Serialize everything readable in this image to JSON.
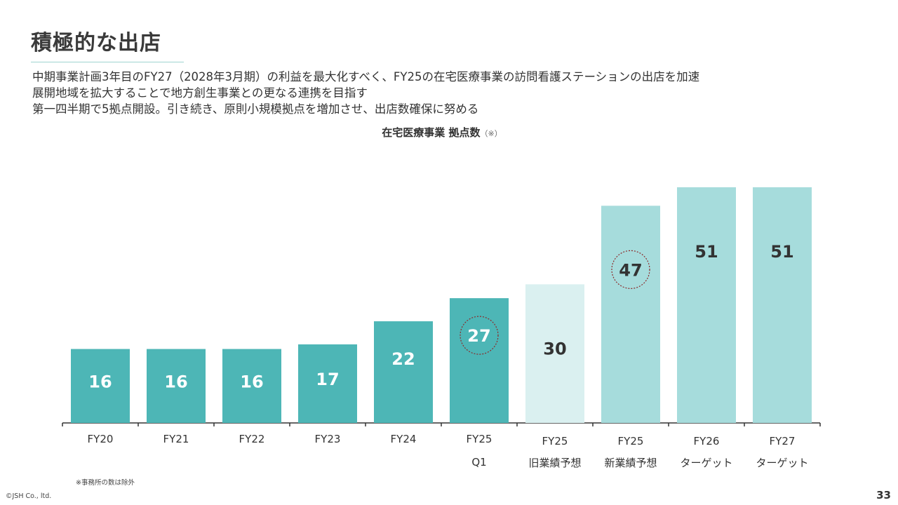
{
  "slide": {
    "title": "積極的な出店",
    "description": [
      "中期事業計画3年目のFY27（2028年3月期）の利益を最大化すべく、FY25の在宅医療事業の訪問看護ステーションの出店を加速",
      "展開地域を拡大することで地方創生事業との更なる連携を目指す",
      "第一四半期で5拠点開設。引き続き、原則小規模拠点を増加させ、出店数確保に努める"
    ],
    "footnote": "※事務所の数は除外",
    "copyright": "©JSH Co., ltd.",
    "page_number": "33"
  },
  "chart_data": {
    "type": "bar",
    "title": "在宅医療事業 拠点数",
    "title_note": "（※）",
    "categories": [
      [
        "FY20"
      ],
      [
        "FY21"
      ],
      [
        "FY22"
      ],
      [
        "FY23"
      ],
      [
        "FY24"
      ],
      [
        "FY25",
        "Q1"
      ],
      [
        "FY25",
        "旧業績予想"
      ],
      [
        "FY25",
        "新業績予想"
      ],
      [
        "FY26",
        "ターゲット"
      ],
      [
        "FY27",
        "ターゲット"
      ]
    ],
    "values": [
      16,
      16,
      16,
      17,
      22,
      27,
      30,
      47,
      51,
      51
    ],
    "bar_colors": [
      "#4db6b6",
      "#4db6b6",
      "#4db6b6",
      "#4db6b6",
      "#4db6b6",
      "#4db6b6",
      "#daf0f0",
      "#a6dcdc",
      "#a6dcdc",
      "#a6dcdc"
    ],
    "label_colors": [
      "#ffffff",
      "#ffffff",
      "#ffffff",
      "#ffffff",
      "#ffffff",
      "#ffffff",
      "#333333",
      "#333333",
      "#333333",
      "#333333"
    ],
    "highlighted_indices": [
      5,
      7
    ],
    "highlight_color": "#8b2a2a",
    "ylim": [
      0,
      51
    ],
    "grid": false,
    "legend": "none"
  }
}
